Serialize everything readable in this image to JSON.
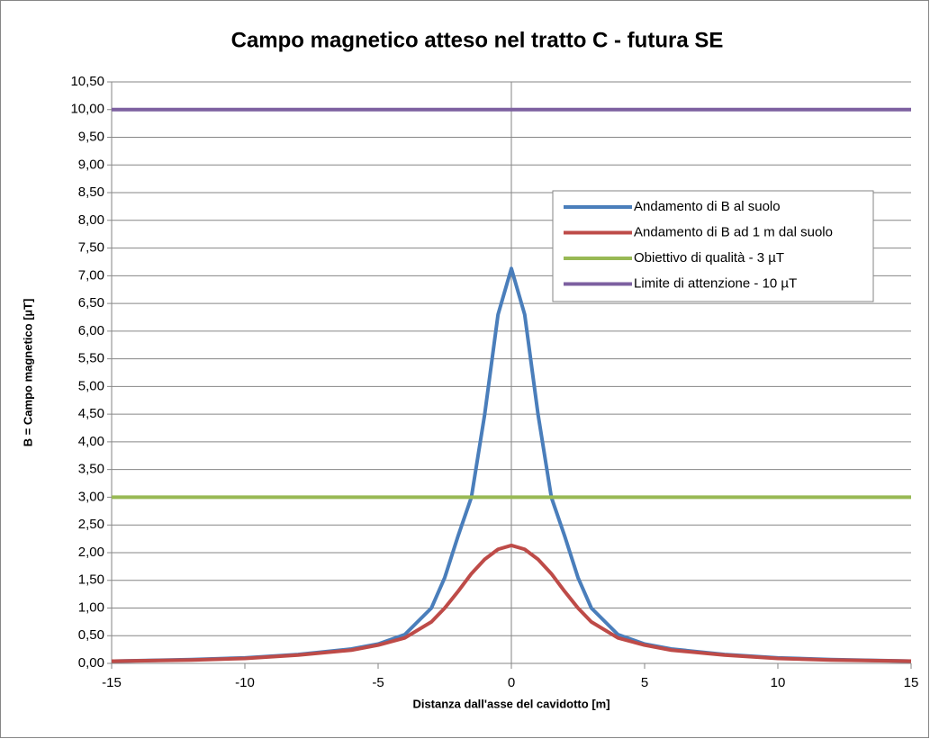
{
  "chart_data": {
    "type": "line",
    "title": "Campo magnetico atteso nel tratto C - futura SE",
    "x_label": "Distanza dall'asse del cavidotto [m]",
    "y_label": "B = Campo magnetico [µT]",
    "x": [
      -15,
      -12,
      -10,
      -8,
      -6,
      -5,
      -4,
      -3,
      -2.5,
      -2,
      -1.5,
      -1,
      -0.5,
      0,
      0.5,
      1,
      1.5,
      2,
      2.5,
      3,
      4,
      5,
      6,
      8,
      10,
      12,
      15
    ],
    "series": [
      {
        "name": "Andamento di B al suolo",
        "color": "#4a7ebb",
        "values": [
          0.04,
          0.07,
          0.1,
          0.16,
          0.26,
          0.35,
          0.52,
          1.0,
          1.55,
          2.3,
          3.0,
          4.5,
          6.3,
          7.13,
          6.3,
          4.5,
          3.0,
          2.3,
          1.55,
          1.0,
          0.52,
          0.35,
          0.26,
          0.16,
          0.1,
          0.07,
          0.04
        ]
      },
      {
        "name": "Andamento di B ad 1 m dal suolo",
        "color": "#be4b48",
        "values": [
          0.04,
          0.06,
          0.09,
          0.15,
          0.24,
          0.33,
          0.46,
          0.75,
          1.0,
          1.3,
          1.62,
          1.88,
          2.06,
          2.13,
          2.06,
          1.88,
          1.62,
          1.3,
          1.0,
          0.75,
          0.46,
          0.33,
          0.24,
          0.15,
          0.09,
          0.06,
          0.04
        ]
      },
      {
        "name": "Obiettivo di qualità - 3 µT",
        "color": "#98b954",
        "values": [
          3,
          3,
          3,
          3,
          3,
          3,
          3,
          3,
          3,
          3,
          3,
          3,
          3,
          3,
          3,
          3,
          3,
          3,
          3,
          3,
          3,
          3,
          3,
          3,
          3,
          3,
          3
        ]
      },
      {
        "name": "Limite di attenzione - 10 µT",
        "color": "#7d60a0",
        "values": [
          10,
          10,
          10,
          10,
          10,
          10,
          10,
          10,
          10,
          10,
          10,
          10,
          10,
          10,
          10,
          10,
          10,
          10,
          10,
          10,
          10,
          10,
          10,
          10,
          10,
          10,
          10
        ]
      }
    ],
    "xlim": [
      -15,
      15
    ],
    "xticks": [
      -15,
      -10,
      -5,
      0,
      5,
      10,
      15
    ],
    "ylim": [
      0,
      10.5
    ],
    "yticks": [
      {
        "value": 0,
        "label": "0,00"
      },
      {
        "value": 0.5,
        "label": "0,50"
      },
      {
        "value": 1,
        "label": "1,00"
      },
      {
        "value": 1.5,
        "label": "1,50"
      },
      {
        "value": 2,
        "label": "2,00"
      },
      {
        "value": 2.5,
        "label": "2,50"
      },
      {
        "value": 3,
        "label": "3,00"
      },
      {
        "value": 3.5,
        "label": "3,50"
      },
      {
        "value": 4,
        "label": "4,00"
      },
      {
        "value": 4.5,
        "label": "4,50"
      },
      {
        "value": 5,
        "label": "5,00"
      },
      {
        "value": 5.5,
        "label": "5,50"
      },
      {
        "value": 6,
        "label": "6,00"
      },
      {
        "value": 6.5,
        "label": "6,50"
      },
      {
        "value": 7,
        "label": "7,00"
      },
      {
        "value": 7.5,
        "label": "7,50"
      },
      {
        "value": 8,
        "label": "8,00"
      },
      {
        "value": 8.5,
        "label": "8,50"
      },
      {
        "value": 9,
        "label": "9,00"
      },
      {
        "value": 9.5,
        "label": "9,50"
      },
      {
        "value": 10,
        "label": "10,00"
      },
      {
        "value": 10.5,
        "label": "10,50"
      }
    ],
    "grid": true,
    "legend": "upper right"
  }
}
